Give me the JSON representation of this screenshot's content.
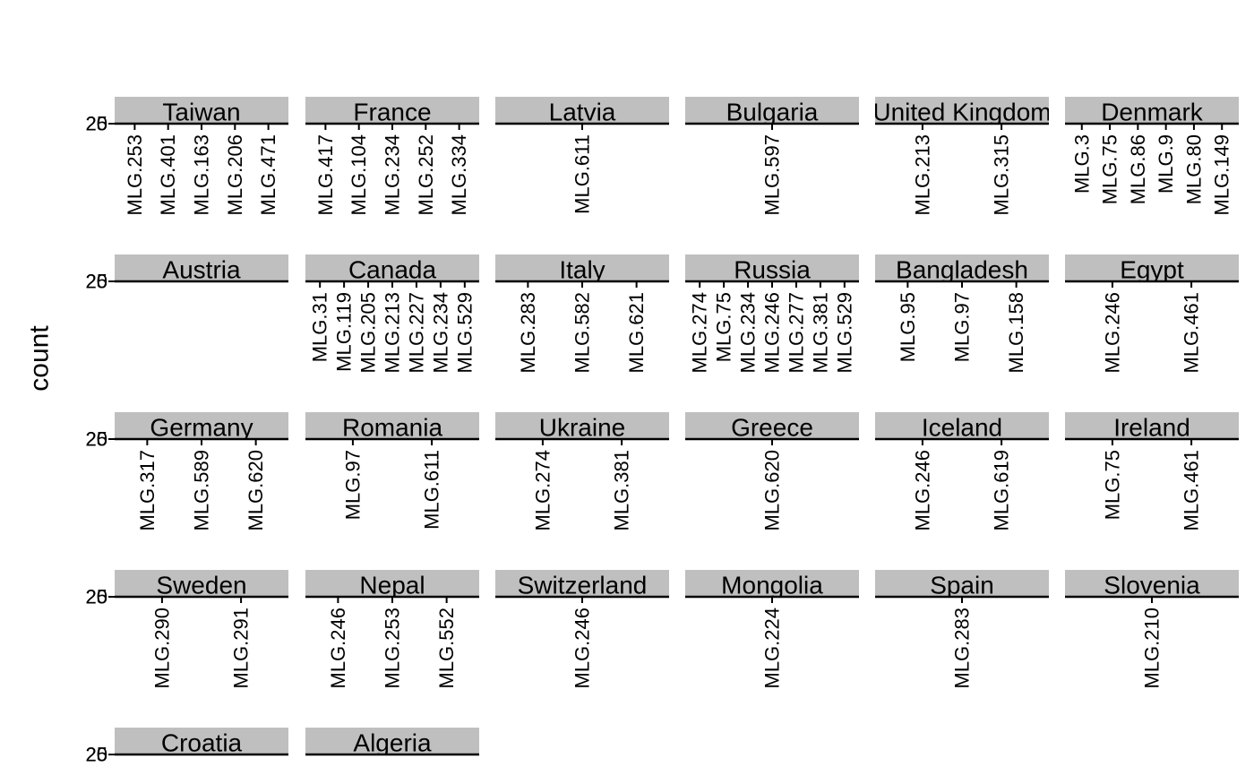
{
  "chart_data": {
    "type": "bar",
    "y_label": "count",
    "yticks": [
      20,
      25
    ],
    "facets": [
      {
        "name": "Taiwan",
        "categories": [
          "MLG.253",
          "MLG.401",
          "MLG.163",
          "MLG.206",
          "MLG.471"
        ]
      },
      {
        "name": "France",
        "categories": [
          "MLG.417",
          "MLG.104",
          "MLG.234",
          "MLG.252",
          "MLG.334"
        ]
      },
      {
        "name": "Latvia",
        "categories": [
          "MLG.611"
        ]
      },
      {
        "name": "Bulgaria",
        "categories": [
          "MLG.597"
        ]
      },
      {
        "name": "United Kingdom",
        "categories": [
          "MLG.213",
          "MLG.315"
        ]
      },
      {
        "name": "Denmark",
        "categories": [
          "MLG.3",
          "MLG.75",
          "MLG.86",
          "MLG.9",
          "MLG.80",
          "MLG.149"
        ]
      },
      {
        "name": "Austria"
      },
      {
        "name": "Canada",
        "categories": [
          "MLG.31",
          "MLG.119",
          "MLG.205",
          "MLG.213",
          "MLG.227",
          "MLG.234",
          "MLG.529"
        ]
      },
      {
        "name": "Italy",
        "categories": [
          "MLG.283",
          "MLG.582",
          "MLG.621"
        ]
      },
      {
        "name": "Russia",
        "categories": [
          "MLG.274",
          "MLG.75",
          "MLG.234",
          "MLG.246",
          "MLG.277",
          "MLG.381",
          "MLG.529"
        ]
      },
      {
        "name": "Bangladesh",
        "categories": [
          "MLG.95",
          "MLG.97",
          "MLG.158"
        ]
      },
      {
        "name": "Egypt",
        "categories": [
          "MLG.246",
          "MLG.461"
        ]
      },
      {
        "name": "Germany",
        "categories": [
          "MLG.317",
          "MLG.589",
          "MLG.620"
        ]
      },
      {
        "name": "Romania",
        "categories": [
          "MLG.97",
          "MLG.611"
        ]
      },
      {
        "name": "Ukraine",
        "categories": [
          "MLG.274",
          "MLG.381"
        ]
      },
      {
        "name": "Greece",
        "categories": [
          "MLG.620"
        ]
      },
      {
        "name": "Iceland",
        "categories": [
          "MLG.246",
          "MLG.619"
        ]
      },
      {
        "name": "Ireland",
        "categories": [
          "MLG.75",
          "MLG.461"
        ]
      },
      {
        "name": "Sweden",
        "categories": [
          "MLG.290",
          "MLG.291"
        ]
      },
      {
        "name": "Nepal",
        "categories": [
          "MLG.246",
          "MLG.253",
          "MLG.552"
        ]
      },
      {
        "name": "Switzerland",
        "categories": [
          "MLG.246"
        ]
      },
      {
        "name": "Mongolia",
        "categories": [
          "MLG.224"
        ]
      },
      {
        "name": "Spain",
        "categories": [
          "MLG.283"
        ]
      },
      {
        "name": "Slovenia",
        "categories": [
          "MLG.210"
        ]
      },
      {
        "name": "Croatia"
      },
      {
        "name": "Algeria"
      }
    ]
  }
}
